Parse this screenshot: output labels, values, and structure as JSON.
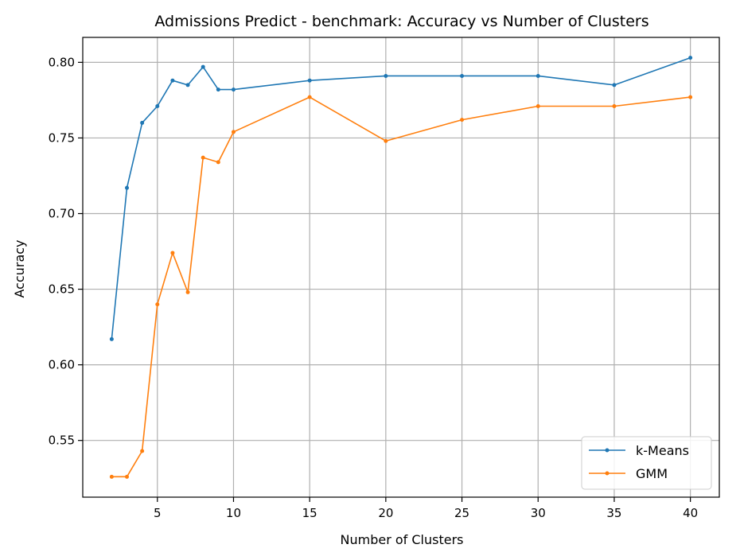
{
  "chart_data": {
    "type": "line",
    "title": "Admissions Predict - benchmark: Accuracy vs Number of Clusters",
    "xlabel": "Number of Clusters",
    "ylabel": "Accuracy",
    "xlim": [
      0.1,
      41.9
    ],
    "ylim": [
      0.5125,
      0.8165
    ],
    "x_ticks": [
      5,
      10,
      15,
      20,
      25,
      30,
      35,
      40
    ],
    "y_ticks": [
      0.55,
      0.6,
      0.65,
      0.7,
      0.75,
      0.8
    ],
    "x_tick_labels": [
      "5",
      "10",
      "15",
      "20",
      "25",
      "30",
      "35",
      "40"
    ],
    "y_tick_labels": [
      "0.55",
      "0.60",
      "0.65",
      "0.70",
      "0.75",
      "0.80"
    ],
    "grid": true,
    "legend_position": "lower-right",
    "x": [
      2,
      3,
      4,
      5,
      6,
      7,
      8,
      9,
      10,
      15,
      20,
      25,
      30,
      35,
      40
    ],
    "series": [
      {
        "name": "k-Means",
        "color": "#1f77b4",
        "values": [
          0.617,
          0.717,
          0.76,
          0.771,
          0.788,
          0.785,
          0.797,
          0.782,
          0.782,
          0.788,
          0.791,
          0.791,
          0.791,
          0.785,
          0.803
        ]
      },
      {
        "name": "GMM",
        "color": "#ff7f0e",
        "values": [
          0.526,
          0.526,
          0.543,
          0.64,
          0.674,
          0.648,
          0.737,
          0.734,
          0.754,
          0.777,
          0.748,
          0.762,
          0.771,
          0.771,
          0.777
        ]
      }
    ]
  }
}
